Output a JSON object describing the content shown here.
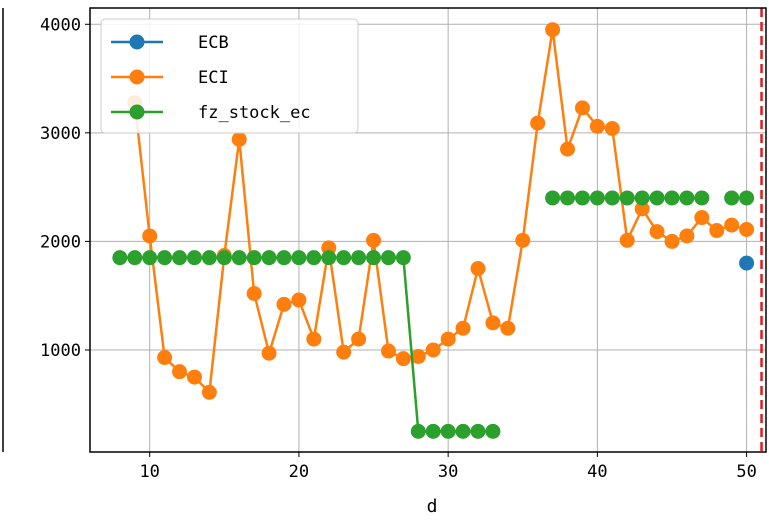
{
  "chart_data": {
    "type": "line",
    "title": "",
    "xlabel": "d",
    "ylabel": "",
    "xlim": [
      6,
      51.3
    ],
    "ylim": [
      60,
      4150
    ],
    "x_ticks": [
      10,
      20,
      30,
      40,
      50
    ],
    "y_ticks": [
      1000,
      2000,
      3000,
      4000
    ],
    "grid": true,
    "legend_position": "top-left",
    "vline": {
      "x": 51,
      "color": "#e41a1c",
      "style": "dashed"
    },
    "series": [
      {
        "name": "ECB",
        "color": "#1f77b4",
        "points": [
          [
            50,
            1800
          ]
        ]
      },
      {
        "name": "ECI",
        "color": "#ff7f0e",
        "points": [
          [
            9,
            3280
          ],
          [
            10,
            2050
          ],
          [
            11,
            930
          ],
          [
            12,
            800
          ],
          [
            13,
            750
          ],
          [
            14,
            610
          ],
          [
            15,
            1870
          ],
          [
            16,
            2940
          ],
          [
            17,
            1520
          ],
          [
            18,
            970
          ],
          [
            19,
            1420
          ],
          [
            20,
            1460
          ],
          [
            21,
            1100
          ],
          [
            22,
            1940
          ],
          [
            23,
            980
          ],
          [
            24,
            1100
          ],
          [
            25,
            2010
          ],
          [
            26,
            990
          ],
          [
            27,
            920
          ],
          [
            28,
            940
          ],
          [
            29,
            1000
          ],
          [
            30,
            1100
          ],
          [
            31,
            1200
          ],
          [
            32,
            1750
          ],
          [
            33,
            1250
          ],
          [
            34,
            1200
          ],
          [
            35,
            2010
          ],
          [
            36,
            3090
          ],
          [
            37,
            3950
          ],
          [
            38,
            2850
          ],
          [
            39,
            3230
          ],
          [
            40,
            3060
          ],
          [
            41,
            3040
          ],
          [
            42,
            2010
          ],
          [
            43,
            2300
          ],
          [
            44,
            2090
          ],
          [
            45,
            2000
          ],
          [
            46,
            2050
          ],
          [
            47,
            2220
          ],
          [
            48,
            2100
          ],
          [
            49,
            2150
          ],
          [
            50,
            2110
          ]
        ]
      },
      {
        "name": "fz_stock_ec",
        "color": "#2ca02c",
        "segments": [
          [
            [
              8,
              1850
            ],
            [
              9,
              1850
            ],
            [
              10,
              1850
            ],
            [
              11,
              1850
            ],
            [
              12,
              1850
            ],
            [
              13,
              1850
            ],
            [
              14,
              1850
            ],
            [
              15,
              1850
            ],
            [
              16,
              1850
            ],
            [
              17,
              1850
            ],
            [
              18,
              1850
            ],
            [
              19,
              1850
            ],
            [
              20,
              1850
            ],
            [
              21,
              1850
            ],
            [
              22,
              1850
            ],
            [
              23,
              1850
            ],
            [
              24,
              1850
            ],
            [
              25,
              1850
            ],
            [
              26,
              1850
            ],
            [
              27,
              1850
            ],
            [
              28,
              250
            ],
            [
              29,
              250
            ],
            [
              30,
              250
            ],
            [
              31,
              250
            ],
            [
              32,
              250
            ],
            [
              33,
              250
            ]
          ],
          [
            [
              37,
              2400
            ],
            [
              38,
              2400
            ],
            [
              39,
              2400
            ],
            [
              40,
              2400
            ],
            [
              41,
              2400
            ],
            [
              42,
              2400
            ],
            [
              43,
              2400
            ],
            [
              44,
              2400
            ],
            [
              45,
              2400
            ],
            [
              46,
              2400
            ],
            [
              47,
              2400
            ]
          ],
          [
            [
              49,
              2400
            ],
            [
              50,
              2400
            ]
          ]
        ]
      }
    ]
  }
}
